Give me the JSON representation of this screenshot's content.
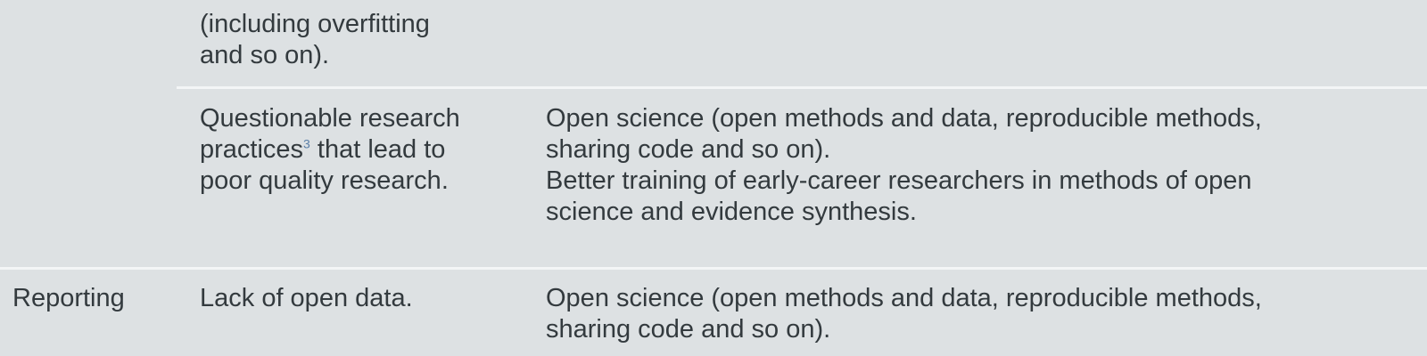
{
  "rows": [
    {
      "stage": "",
      "problem": [
        "(including overfitting",
        "and so on)."
      ],
      "solution": []
    },
    {
      "stage": "",
      "problem_lines": [
        {
          "text": "Questionable research"
        },
        {
          "text": "practices",
          "ref": "3",
          "after": " that lead to"
        },
        {
          "text": "poor quality research."
        }
      ],
      "solution": [
        "Open science (open methods and data, reproducible methods,",
        "sharing code and so on).",
        "Better training of early-career researchers in methods of open",
        "science and evidence synthesis."
      ]
    },
    {
      "stage": "Reporting",
      "problem": [
        "Lack of open data."
      ],
      "solution": [
        "Open science (open methods and data, reproducible methods,",
        "sharing code and so on)."
      ]
    }
  ]
}
